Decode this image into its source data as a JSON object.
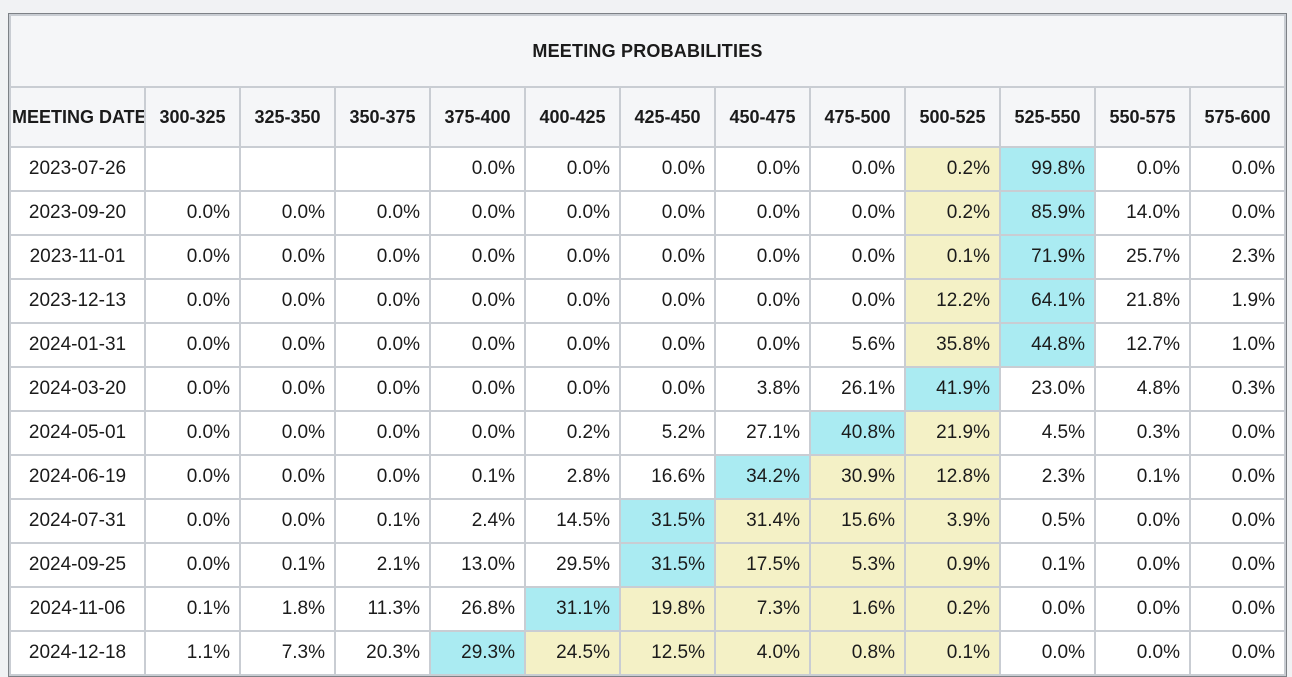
{
  "page": {
    "background": "#f1f2f4"
  },
  "colors": {
    "highlight_yellow": "#f4f1c6",
    "highlight_cyan": "#aaebf2",
    "header_bg": "#f5f6f8",
    "grid": "#c9cdd3",
    "outer_border": "#7d8186",
    "text": "#1b1b1b"
  },
  "chart_data": {
    "type": "table",
    "title": "MEETING PROBABILITIES",
    "columns": [
      "MEETING DATE",
      "300-325",
      "325-350",
      "350-375",
      "375-400",
      "400-425",
      "425-450",
      "450-475",
      "475-500",
      "500-525",
      "525-550",
      "550-575",
      "575-600"
    ],
    "highlight_key": {
      "y": "yellow",
      "c": "cyan"
    },
    "rows": [
      {
        "date": "2023-07-26",
        "values": [
          "",
          "",
          "",
          "0.0%",
          "0.0%",
          "0.0%",
          "0.0%",
          "0.0%",
          "0.2%",
          "99.8%",
          "0.0%",
          "0.0%"
        ],
        "highlights": [
          "",
          "",
          "",
          "",
          "",
          "",
          "",
          "",
          "y",
          "c",
          "",
          ""
        ]
      },
      {
        "date": "2023-09-20",
        "values": [
          "0.0%",
          "0.0%",
          "0.0%",
          "0.0%",
          "0.0%",
          "0.0%",
          "0.0%",
          "0.0%",
          "0.2%",
          "85.9%",
          "14.0%",
          "0.0%"
        ],
        "highlights": [
          "",
          "",
          "",
          "",
          "",
          "",
          "",
          "",
          "y",
          "c",
          "",
          ""
        ]
      },
      {
        "date": "2023-11-01",
        "values": [
          "0.0%",
          "0.0%",
          "0.0%",
          "0.0%",
          "0.0%",
          "0.0%",
          "0.0%",
          "0.0%",
          "0.1%",
          "71.9%",
          "25.7%",
          "2.3%"
        ],
        "highlights": [
          "",
          "",
          "",
          "",
          "",
          "",
          "",
          "",
          "y",
          "c",
          "",
          ""
        ]
      },
      {
        "date": "2023-12-13",
        "values": [
          "0.0%",
          "0.0%",
          "0.0%",
          "0.0%",
          "0.0%",
          "0.0%",
          "0.0%",
          "0.0%",
          "12.2%",
          "64.1%",
          "21.8%",
          "1.9%"
        ],
        "highlights": [
          "",
          "",
          "",
          "",
          "",
          "",
          "",
          "",
          "y",
          "c",
          "",
          ""
        ]
      },
      {
        "date": "2024-01-31",
        "values": [
          "0.0%",
          "0.0%",
          "0.0%",
          "0.0%",
          "0.0%",
          "0.0%",
          "0.0%",
          "5.6%",
          "35.8%",
          "44.8%",
          "12.7%",
          "1.0%"
        ],
        "highlights": [
          "",
          "",
          "",
          "",
          "",
          "",
          "",
          "",
          "y",
          "c",
          "",
          ""
        ]
      },
      {
        "date": "2024-03-20",
        "values": [
          "0.0%",
          "0.0%",
          "0.0%",
          "0.0%",
          "0.0%",
          "0.0%",
          "3.8%",
          "26.1%",
          "41.9%",
          "23.0%",
          "4.8%",
          "0.3%"
        ],
        "highlights": [
          "",
          "",
          "",
          "",
          "",
          "",
          "",
          "",
          "c",
          "",
          "",
          ""
        ]
      },
      {
        "date": "2024-05-01",
        "values": [
          "0.0%",
          "0.0%",
          "0.0%",
          "0.0%",
          "0.2%",
          "5.2%",
          "27.1%",
          "40.8%",
          "21.9%",
          "4.5%",
          "0.3%",
          "0.0%"
        ],
        "highlights": [
          "",
          "",
          "",
          "",
          "",
          "",
          "",
          "c",
          "y",
          "",
          "",
          ""
        ]
      },
      {
        "date": "2024-06-19",
        "values": [
          "0.0%",
          "0.0%",
          "0.0%",
          "0.1%",
          "2.8%",
          "16.6%",
          "34.2%",
          "30.9%",
          "12.8%",
          "2.3%",
          "0.1%",
          "0.0%"
        ],
        "highlights": [
          "",
          "",
          "",
          "",
          "",
          "",
          "c",
          "y",
          "y",
          "",
          "",
          ""
        ]
      },
      {
        "date": "2024-07-31",
        "values": [
          "0.0%",
          "0.0%",
          "0.1%",
          "2.4%",
          "14.5%",
          "31.5%",
          "31.4%",
          "15.6%",
          "3.9%",
          "0.5%",
          "0.0%",
          "0.0%"
        ],
        "highlights": [
          "",
          "",
          "",
          "",
          "",
          "c",
          "y",
          "y",
          "y",
          "",
          "",
          ""
        ]
      },
      {
        "date": "2024-09-25",
        "values": [
          "0.0%",
          "0.1%",
          "2.1%",
          "13.0%",
          "29.5%",
          "31.5%",
          "17.5%",
          "5.3%",
          "0.9%",
          "0.1%",
          "0.0%",
          "0.0%"
        ],
        "highlights": [
          "",
          "",
          "",
          "",
          "",
          "c",
          "y",
          "y",
          "y",
          "",
          "",
          ""
        ]
      },
      {
        "date": "2024-11-06",
        "values": [
          "0.1%",
          "1.8%",
          "11.3%",
          "26.8%",
          "31.1%",
          "19.8%",
          "7.3%",
          "1.6%",
          "0.2%",
          "0.0%",
          "0.0%",
          "0.0%"
        ],
        "highlights": [
          "",
          "",
          "",
          "",
          "c",
          "y",
          "y",
          "y",
          "y",
          "",
          "",
          ""
        ]
      },
      {
        "date": "2024-12-18",
        "values": [
          "1.1%",
          "7.3%",
          "20.3%",
          "29.3%",
          "24.5%",
          "12.5%",
          "4.0%",
          "0.8%",
          "0.1%",
          "0.0%",
          "0.0%",
          "0.0%"
        ],
        "highlights": [
          "",
          "",
          "",
          "c",
          "y",
          "y",
          "y",
          "y",
          "y",
          "",
          "",
          ""
        ]
      }
    ]
  }
}
